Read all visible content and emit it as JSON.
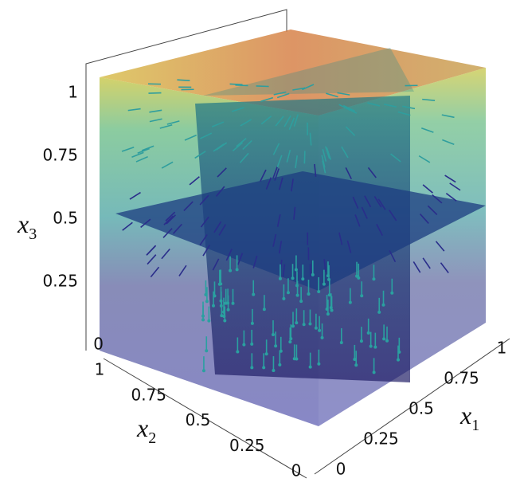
{
  "axes": {
    "x1": {
      "symbol": "x",
      "index": "1",
      "lim": [
        0,
        1
      ],
      "ticks": [
        0,
        0.25,
        0.5,
        0.75,
        1
      ]
    },
    "x2": {
      "symbol": "x",
      "index": "2",
      "lim": [
        0,
        1
      ],
      "ticks": [
        0,
        0.25,
        0.5,
        0.75,
        1
      ]
    },
    "x3": {
      "symbol": "x",
      "index": "3",
      "lim": [
        0,
        1
      ],
      "ticks": [
        0,
        0.25,
        0.5,
        0.75,
        1
      ]
    }
  }
}
